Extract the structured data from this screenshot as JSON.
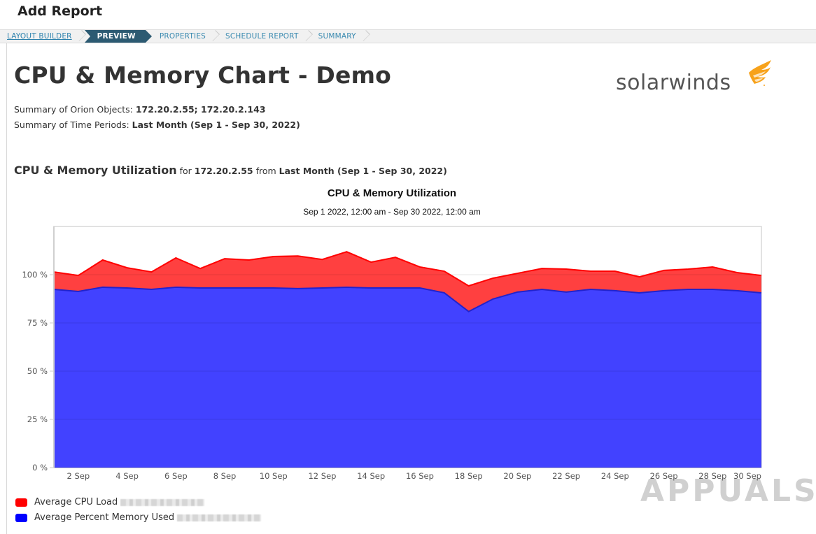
{
  "header": {
    "title": "Add Report"
  },
  "wizard": {
    "steps": [
      {
        "label": "LAYOUT BUILDER",
        "state": "link"
      },
      {
        "label": "PREVIEW",
        "state": "active"
      },
      {
        "label": "PROPERTIES",
        "state": "pending"
      },
      {
        "label": "SCHEDULE REPORT",
        "state": "pending"
      },
      {
        "label": "SUMMARY",
        "state": "pending"
      }
    ]
  },
  "report": {
    "title": "CPU & Memory Chart - Demo",
    "logo_text": "solarwinds",
    "summary_objects_label": "Summary of Orion Objects:",
    "summary_objects_value": "172.20.2.55; 172.20.2.143",
    "summary_periods_label": "Summary of Time Periods:",
    "summary_periods_value": "Last Month (Sep 1 - Sep 30, 2022)",
    "section": {
      "title": "CPU & Memory Utilization",
      "for_label": "for",
      "node": "172.20.2.55",
      "from_label": "from",
      "period": "Last Month (Sep 1 - Sep 30, 2022)"
    }
  },
  "colors": {
    "cpu": "#ff0000",
    "memory": "#0000ff",
    "active_step": "#2c5a72",
    "logo_orange": "#f7a21b"
  },
  "chart_data": {
    "type": "area",
    "stacked": true,
    "title": "CPU & Memory Utilization",
    "subtitle": "Sep 1 2022, 12:00 am - Sep 30 2022, 12:00 am",
    "xlabel": "",
    "ylabel": "",
    "ylim": [
      0,
      125
    ],
    "yticks": [
      0,
      25,
      50,
      75,
      100
    ],
    "ytick_labels": [
      "0 %",
      "25 %",
      "50 %",
      "75 %",
      "100 %"
    ],
    "x": [
      1,
      2,
      3,
      4,
      5,
      6,
      7,
      8,
      9,
      10,
      11,
      12,
      13,
      14,
      15,
      16,
      17,
      18,
      19,
      20,
      21,
      22,
      23,
      24,
      25,
      26,
      27,
      28,
      29,
      30
    ],
    "xtick_labels": [
      "2 Sep",
      "4 Sep",
      "6 Sep",
      "8 Sep",
      "10 Sep",
      "12 Sep",
      "14 Sep",
      "16 Sep",
      "18 Sep",
      "20 Sep",
      "22 Sep",
      "24 Sep",
      "26 Sep",
      "28 Sep",
      "30 Sep"
    ],
    "xtick_days": [
      2,
      4,
      6,
      8,
      10,
      12,
      14,
      16,
      18,
      20,
      22,
      24,
      26,
      28,
      30
    ],
    "grid": true,
    "legend_position": "bottom-left",
    "series": [
      {
        "name": "Average Percent Memory Used",
        "color": "#0000ff",
        "values": [
          92.4,
          91.3,
          93.5,
          93.1,
          92.4,
          93.5,
          93.1,
          93.1,
          93.1,
          93.1,
          92.8,
          93.1,
          93.5,
          93.1,
          93.1,
          93.1,
          90.6,
          80.9,
          87.4,
          91.0,
          92.4,
          91.0,
          92.4,
          91.7,
          90.6,
          91.7,
          92.4,
          92.4,
          91.7,
          90.6
        ]
      },
      {
        "name": "Average CPU Load",
        "color": "#ff0000",
        "values": [
          9.0,
          8.3,
          14.1,
          10.5,
          9.0,
          15.2,
          10.1,
          15.2,
          14.5,
          16.3,
          16.9,
          14.8,
          18.4,
          13.4,
          15.9,
          10.9,
          11.2,
          13.3,
          10.8,
          9.7,
          10.8,
          11.9,
          9.4,
          10.1,
          8.3,
          10.5,
          10.5,
          11.6,
          9.4,
          9.0
        ]
      }
    ]
  },
  "legend": [
    {
      "label": "Average CPU Load",
      "color": "#ff0000"
    },
    {
      "label": "Average Percent Memory Used",
      "color": "#0000ff"
    }
  ],
  "watermark": "APPUALS"
}
